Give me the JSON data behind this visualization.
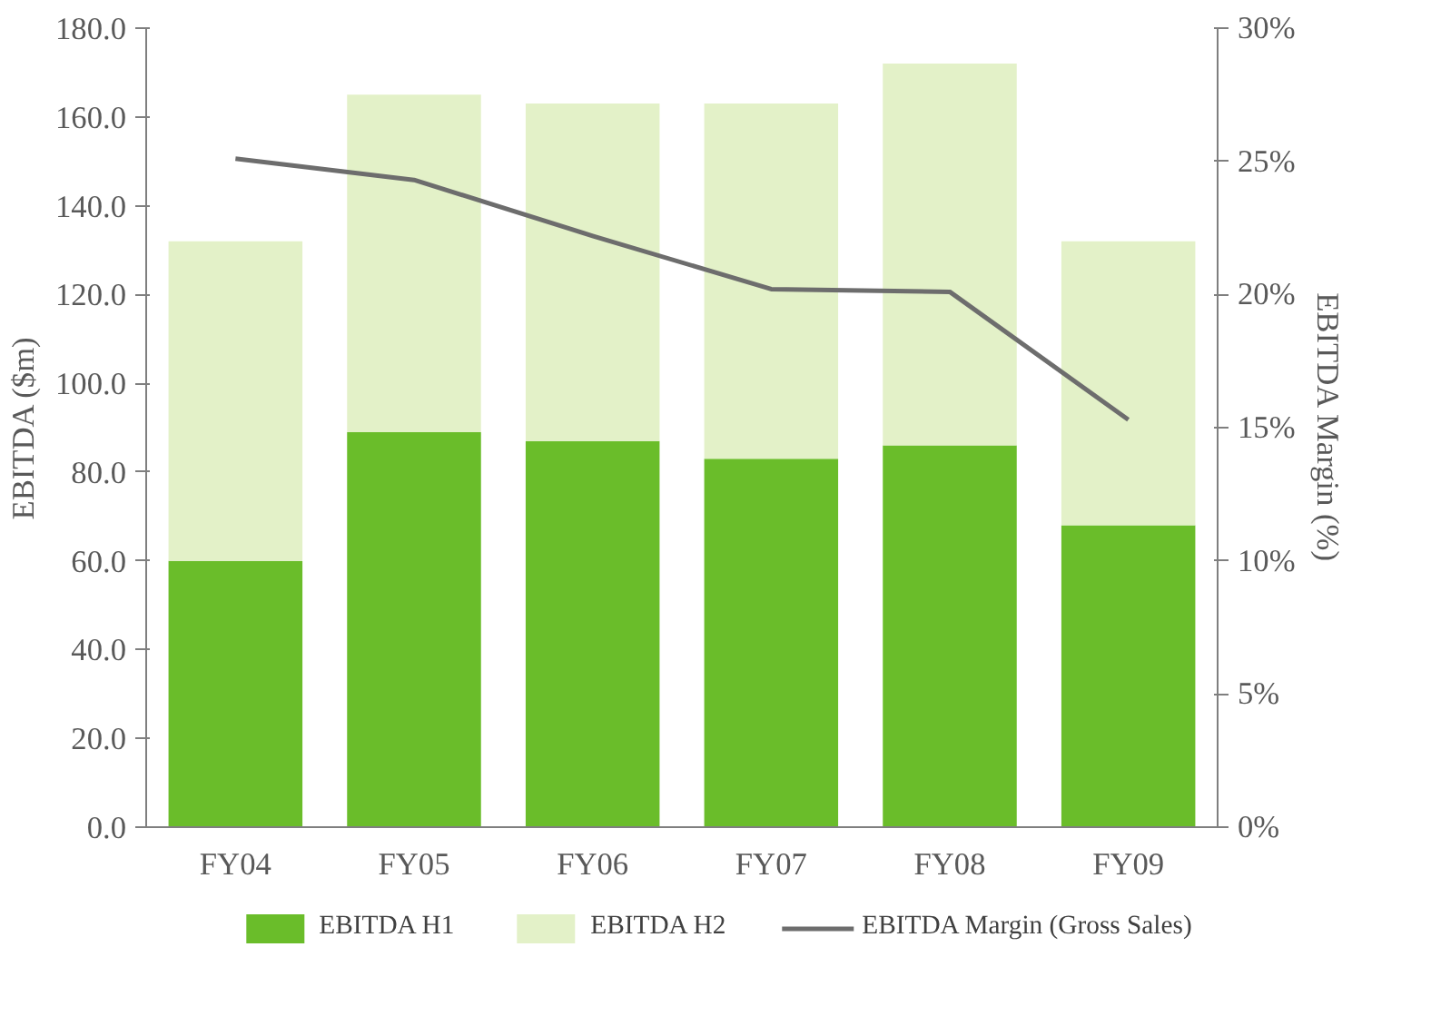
{
  "chart_data": {
    "type": "bar",
    "stacked": true,
    "ylabel": "EBITDA ($m)",
    "y2label": "EBITDA Margin (%)",
    "categories": [
      "FY04",
      "FY05",
      "FY06",
      "FY07",
      "FY08",
      "FY09"
    ],
    "series": [
      {
        "name": "EBITDA H1",
        "color": "#6abd2a",
        "values": [
          60,
          89,
          87,
          83,
          86,
          68
        ]
      },
      {
        "name": "EBITDA H2",
        "color": "#e3f1c8",
        "values": [
          72,
          76,
          76,
          80,
          86,
          64
        ]
      },
      {
        "name": "EBITDA Margin (Gross Sales)",
        "type": "line",
        "axis": "y2",
        "color": "#6d6d6d",
        "values": [
          25.1,
          24.3,
          22.2,
          20.2,
          20.1,
          15.3
        ]
      }
    ],
    "ylim": [
      0,
      180
    ],
    "yticks": [
      {
        "value": 0,
        "label": "0.0"
      },
      {
        "value": 20,
        "label": "20.0"
      },
      {
        "value": 40,
        "label": "40.0"
      },
      {
        "value": 60,
        "label": "60.0"
      },
      {
        "value": 80,
        "label": "80.0"
      },
      {
        "value": 100,
        "label": "100.0"
      },
      {
        "value": 120,
        "label": "120.0"
      },
      {
        "value": 140,
        "label": "140.0"
      },
      {
        "value": 160,
        "label": "160.0"
      },
      {
        "value": 180,
        "label": "180.0"
      }
    ],
    "y2lim": [
      0,
      30
    ],
    "y2ticks": [
      {
        "value": 0,
        "label": "0%"
      },
      {
        "value": 5,
        "label": "5%"
      },
      {
        "value": 10,
        "label": "10%"
      },
      {
        "value": 15,
        "label": "15%"
      },
      {
        "value": 20,
        "label": "20%"
      },
      {
        "value": 25,
        "label": "25%"
      },
      {
        "value": 30,
        "label": "30%"
      }
    ],
    "grid": false,
    "legend": "bottom"
  }
}
